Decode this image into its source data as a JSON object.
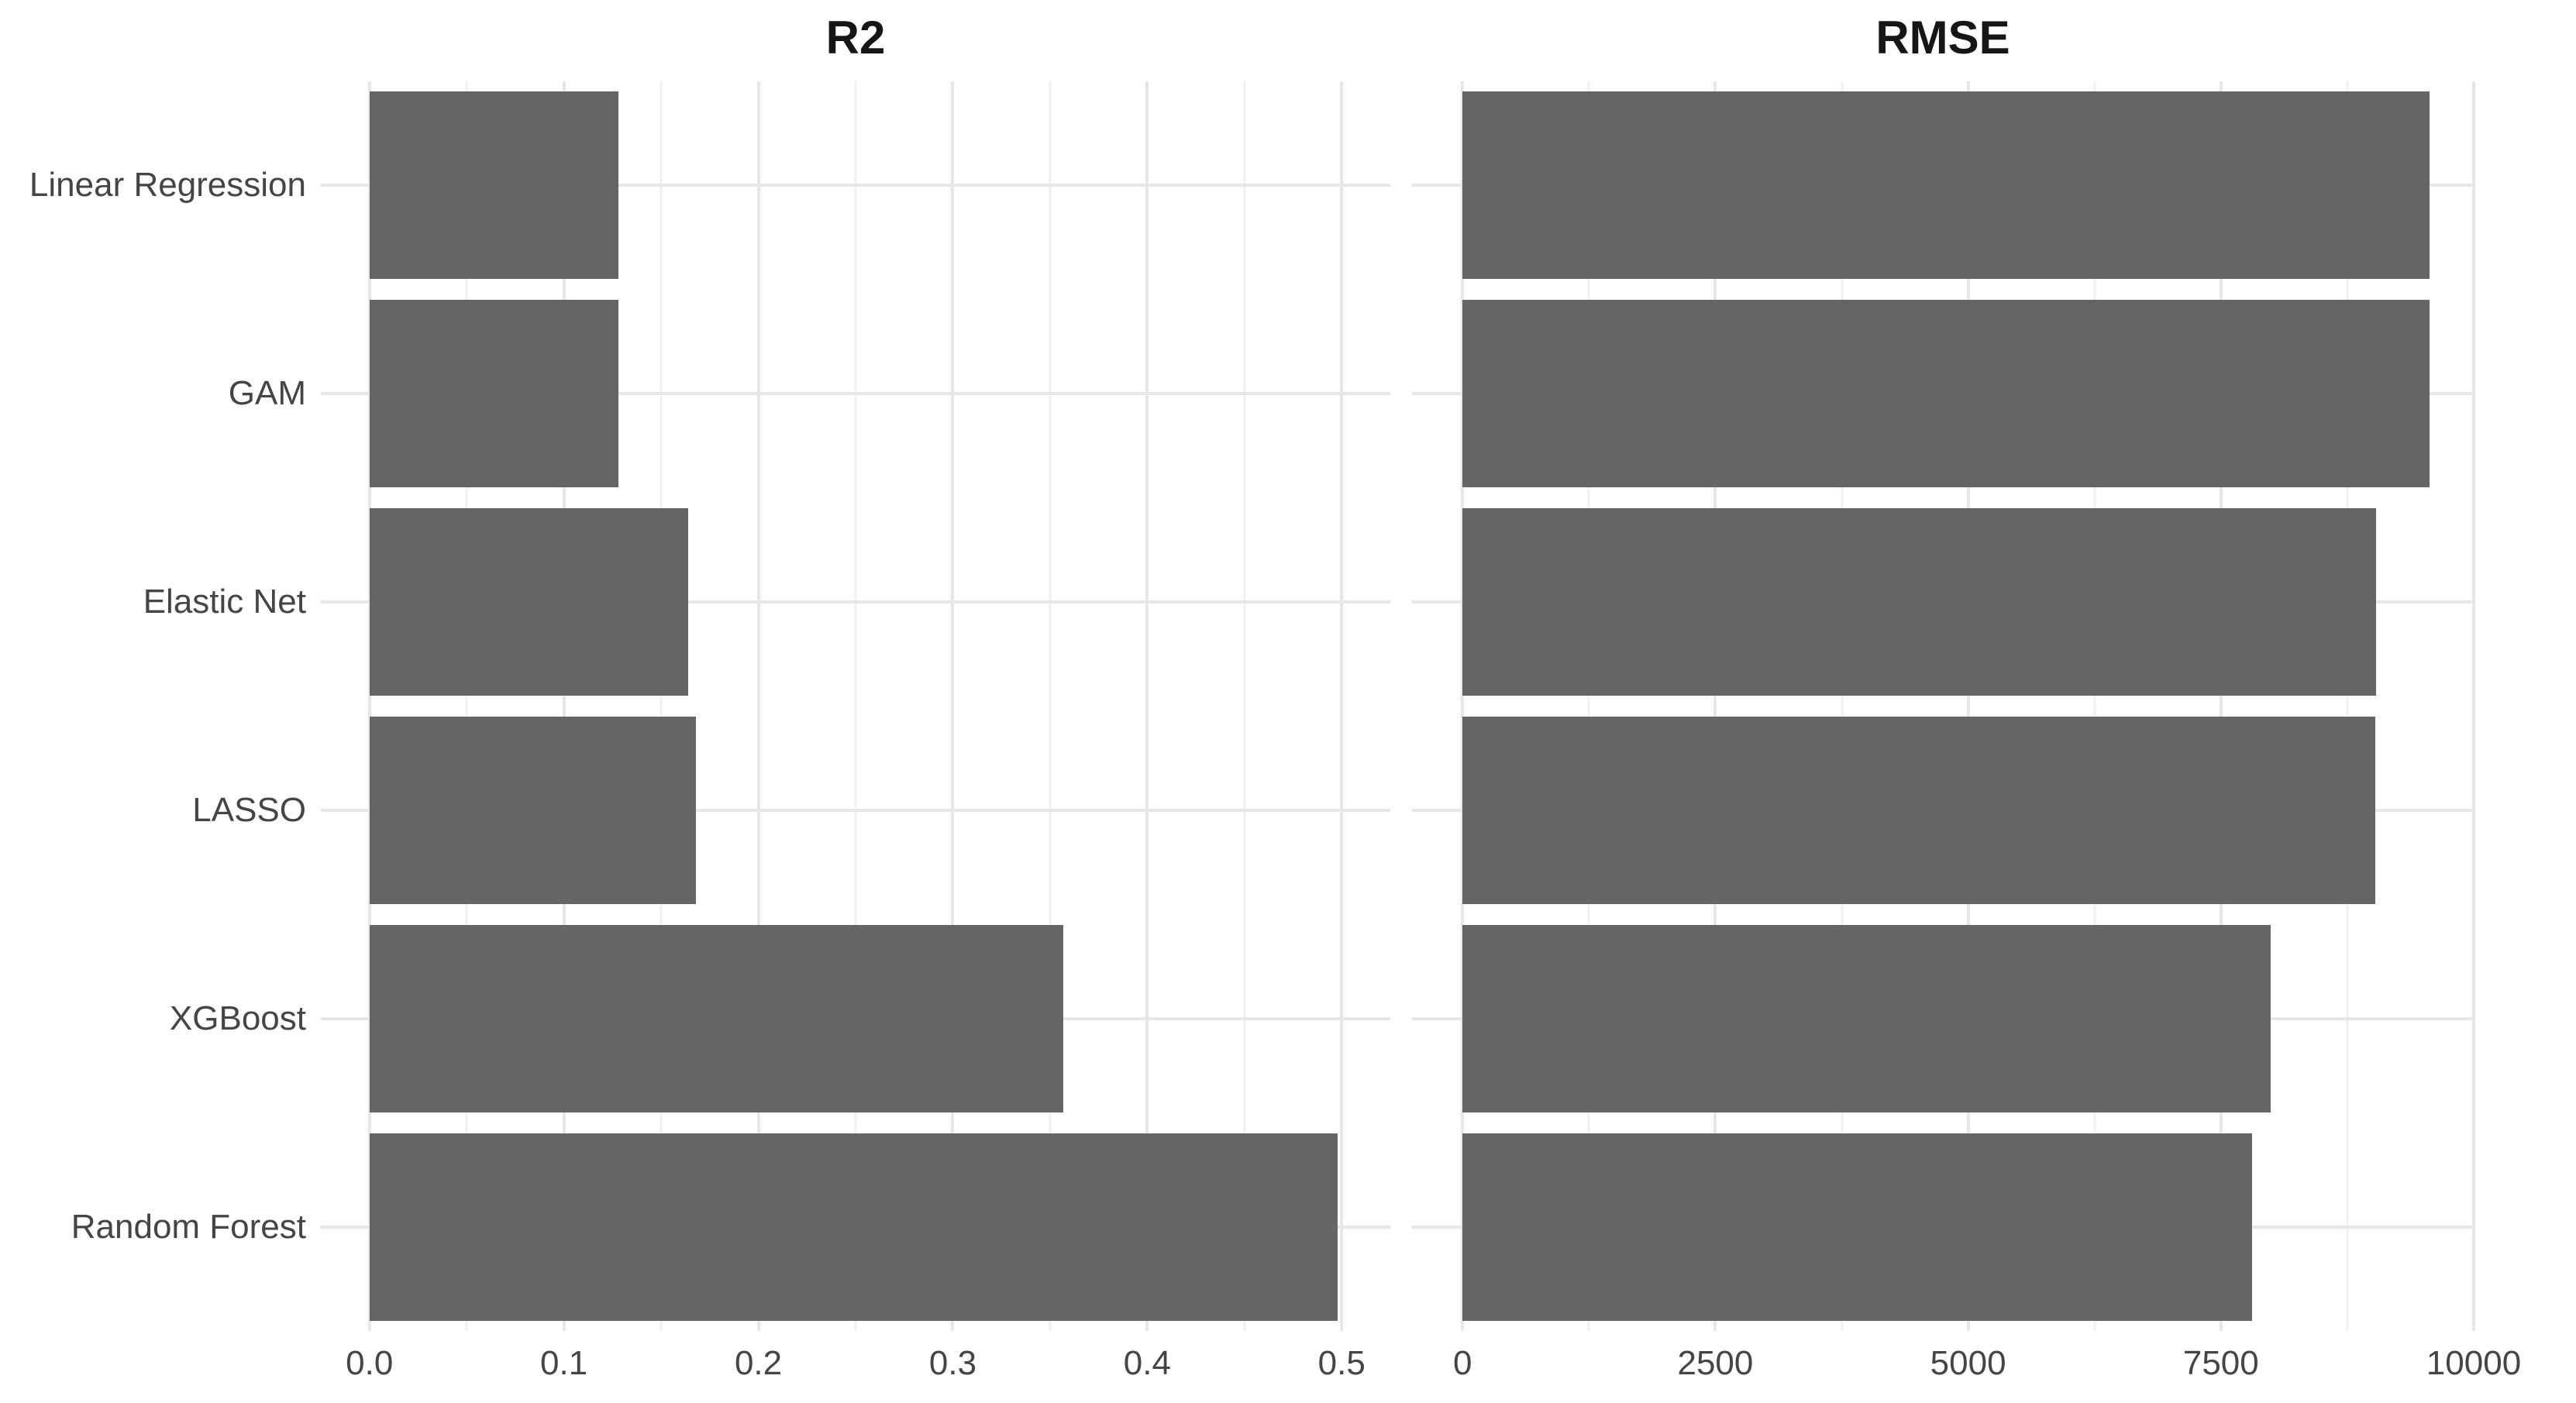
{
  "style": {
    "background": "#ffffff",
    "bar_color": "#656565",
    "grid_major_color": "#e7e7e7",
    "grid_minor_color": "#f0f0f0",
    "axis_text_color": "#454545",
    "title_color": "#161616"
  },
  "categories": [
    "Linear Regression",
    "GAM",
    "Elastic Net",
    "LASSO",
    "XGBoost",
    "Random Forest"
  ],
  "chart_data": [
    {
      "type": "bar",
      "orientation": "horizontal",
      "title": "R2",
      "categories": [
        "Linear Regression",
        "GAM",
        "Elastic Net",
        "LASSO",
        "XGBoost",
        "Random Forest"
      ],
      "values": [
        0.128,
        0.128,
        0.164,
        0.168,
        0.357,
        0.498
      ],
      "xlim": [
        0,
        0.5
      ],
      "xticks": [
        0,
        0.1,
        0.2,
        0.3,
        0.4,
        0.5
      ],
      "xtick_labels": [
        "0.0",
        "0.1",
        "0.2",
        "0.3",
        "0.4",
        "0.5"
      ],
      "minor_xticks": [
        0.05,
        0.15,
        0.25,
        0.35,
        0.45
      ],
      "xlabel": "",
      "ylabel": "",
      "grid": true,
      "legend": false
    },
    {
      "type": "bar",
      "orientation": "horizontal",
      "title": "RMSE",
      "categories": [
        "Linear Regression",
        "GAM",
        "Elastic Net",
        "LASSO",
        "XGBoost",
        "Random Forest"
      ],
      "values": [
        9560,
        9560,
        9035,
        9030,
        7990,
        7810
      ],
      "xlim": [
        0,
        10000
      ],
      "xticks": [
        0,
        2500,
        5000,
        7500,
        10000
      ],
      "xtick_labels": [
        "0",
        "2500",
        "5000",
        "7500",
        "10000"
      ],
      "minor_xticks": [
        1250,
        3750,
        6250,
        8750
      ],
      "xlabel": "",
      "ylabel": "",
      "grid": true,
      "legend": false
    }
  ]
}
